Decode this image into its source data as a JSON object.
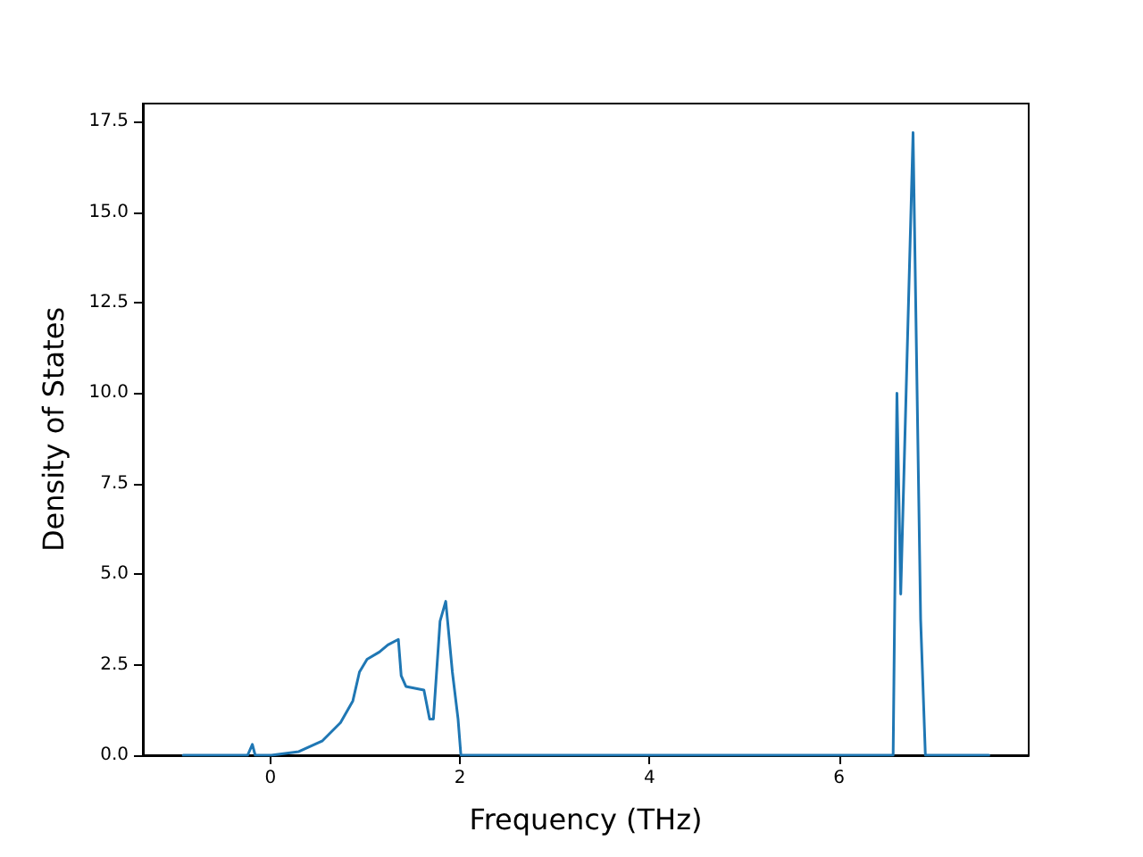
{
  "chart_data": {
    "type": "line",
    "xlabel": "Frequency (THz)",
    "ylabel": "Density of States",
    "x": [
      -0.92,
      -0.24,
      -0.19,
      -0.16,
      0.01,
      0.3,
      0.55,
      0.74,
      0.87,
      0.94,
      1.02,
      1.15,
      1.24,
      1.35,
      1.38,
      1.43,
      1.62,
      1.68,
      1.72,
      1.79,
      1.85,
      1.92,
      1.98,
      2.01,
      6.57,
      6.61,
      6.65,
      6.78,
      6.86,
      6.91,
      7.58
    ],
    "series": [
      {
        "color": "#1f77b4",
        "values": [
          0,
          0,
          0.3,
          0,
          0,
          0.1,
          0.4,
          0.9,
          1.5,
          2.3,
          2.65,
          2.85,
          3.05,
          3.2,
          2.2,
          1.9,
          1.8,
          1.0,
          1.0,
          3.7,
          4.25,
          2.3,
          1.0,
          0,
          0,
          10.0,
          4.45,
          17.2,
          3.75,
          0,
          0
        ]
      }
    ],
    "xlim": [
      -1.345,
      8.0
    ],
    "xticks": [
      0,
      2,
      4,
      6
    ],
    "ylim": [
      0,
      18
    ],
    "yticks": [
      {
        "value": 0,
        "label": "0.0"
      },
      {
        "value": 2.5,
        "label": "2.5"
      },
      {
        "value": 5,
        "label": "5.0"
      },
      {
        "value": 7.5,
        "label": "7.5"
      },
      {
        "value": 10,
        "label": "10.0"
      },
      {
        "value": 12.5,
        "label": "12.5"
      },
      {
        "value": 15,
        "label": "15.0"
      },
      {
        "value": 17.5,
        "label": "17.5"
      }
    ],
    "grid": false,
    "marker": "none",
    "line_style": "solid"
  }
}
